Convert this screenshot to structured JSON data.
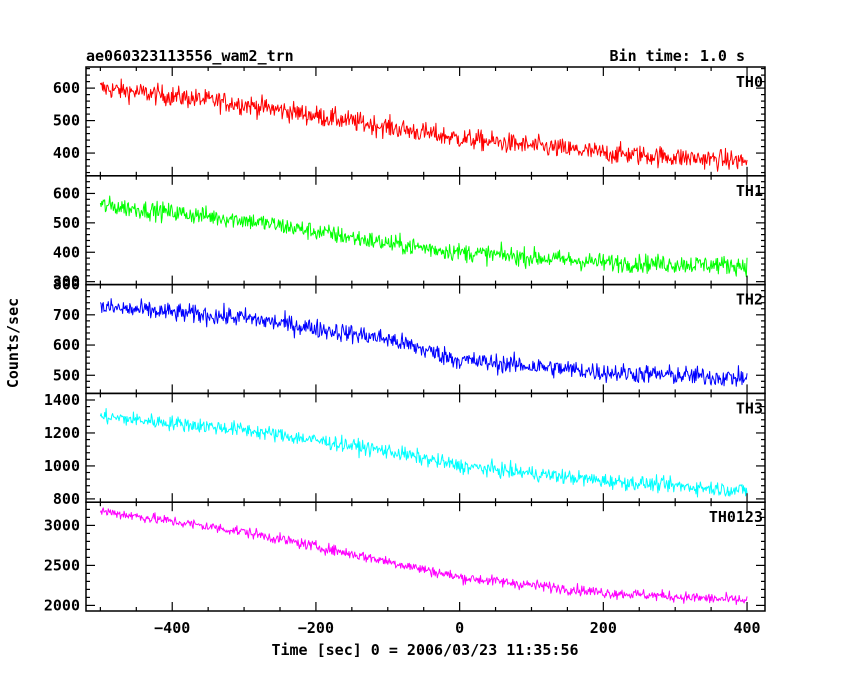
{
  "chart_data": {
    "type": "line",
    "title": "ae060323113556_wam2_trn",
    "subtitle": "Bin time: 1.0 s",
    "xlabel": "Time [sec] 0 = 2006/03/23 11:35:56",
    "ylabel": "Counts/sec",
    "xlim": [
      -520,
      425
    ],
    "x_ticks": [
      -400,
      -200,
      0,
      200,
      400
    ],
    "x_tick_labels": [
      "−400",
      "−200",
      "0",
      "200",
      "400"
    ],
    "x_range_data": [
      -500,
      400
    ],
    "grid": false,
    "panels": [
      {
        "name": "TH0",
        "color": "#ff0000",
        "ylim": [
          330,
          665
        ],
        "y_ticks": [
          400,
          500,
          600
        ],
        "y_tick_labels": [
          "400",
          "500",
          "600"
        ],
        "trend": {
          "x": [
            -500,
            -300,
            -100,
            0,
            200,
            400
          ],
          "y": [
            600,
            550,
            480,
            445,
            400,
            375
          ]
        },
        "noise_amplitude": 28
      },
      {
        "name": "TH1",
        "color": "#00ff00",
        "ylim": [
          290,
          660
        ],
        "y_ticks": [
          300,
          400,
          500,
          600
        ],
        "y_tick_labels": [
          "300",
          "400",
          "500",
          "600"
        ],
        "trend": {
          "x": [
            -500,
            -300,
            -100,
            0,
            200,
            400
          ],
          "y": [
            560,
            510,
            430,
            400,
            365,
            355
          ]
        },
        "noise_amplitude": 28
      },
      {
        "name": "TH2",
        "color": "#0000ff",
        "ylim": [
          440,
          800
        ],
        "y_ticks": [
          500,
          600,
          700,
          800
        ],
        "y_tick_labels": [
          "500",
          "600",
          "700",
          "800"
        ],
        "trend": {
          "x": [
            -500,
            -300,
            -100,
            0,
            200,
            400
          ],
          "y": [
            725,
            690,
            620,
            550,
            510,
            490
          ]
        },
        "noise_amplitude": 28
      },
      {
        "name": "TH3",
        "color": "#00ffff",
        "ylim": [
          780,
          1440
        ],
        "y_ticks": [
          800,
          1000,
          1200,
          1400
        ],
        "y_tick_labels": [
          "800",
          "1000",
          "1200",
          "1400"
        ],
        "trend": {
          "x": [
            -500,
            -300,
            -100,
            0,
            200,
            400
          ],
          "y": [
            1300,
            1220,
            1090,
            1000,
            910,
            850
          ]
        },
        "noise_amplitude": 40
      },
      {
        "name": "TH0123",
        "color": "#ff00ff",
        "ylim": [
          1930,
          3290
        ],
        "y_ticks": [
          2000,
          2500,
          3000
        ],
        "y_tick_labels": [
          "2000",
          "2500",
          "3000"
        ],
        "trend": {
          "x": [
            -500,
            -300,
            -100,
            0,
            200,
            400
          ],
          "y": [
            3180,
            2920,
            2550,
            2350,
            2160,
            2060
          ]
        },
        "noise_amplitude": 60
      }
    ]
  }
}
